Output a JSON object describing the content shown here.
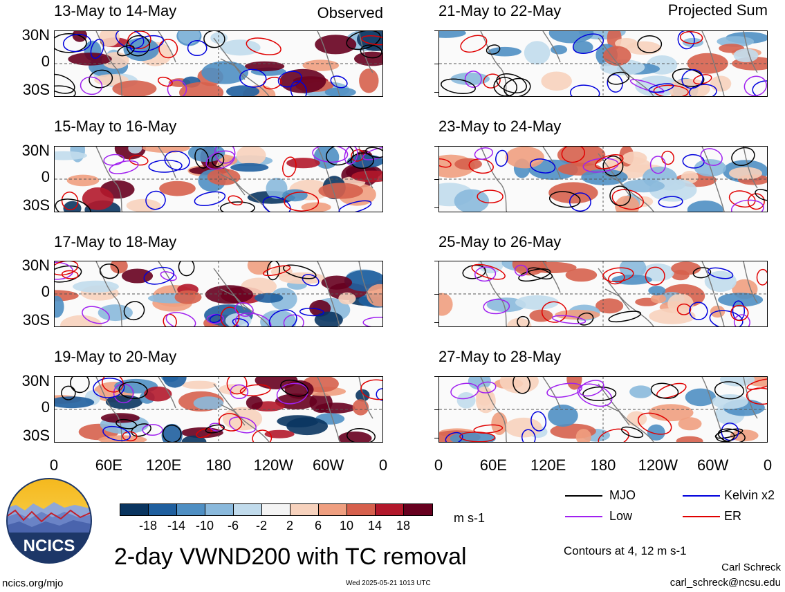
{
  "header": {
    "left_label": "Observed",
    "right_label": "Projected Sum"
  },
  "panels": [
    {
      "title": "13-May to 14-May"
    },
    {
      "title": "15-May to 16-May"
    },
    {
      "title": "17-May to 18-May"
    },
    {
      "title": "19-May to 20-May"
    },
    {
      "title": "21-May to 22-May"
    },
    {
      "title": "23-May to 24-May"
    },
    {
      "title": "25-May to 26-May"
    },
    {
      "title": "27-May to 28-May"
    }
  ],
  "axes": {
    "lat_ticks": [
      "30N",
      "0",
      "30S"
    ],
    "lon_ticks": [
      "0",
      "60E",
      "120E",
      "180",
      "120W",
      "60W",
      "0"
    ]
  },
  "colorbar": {
    "colors": [
      "#0a3560",
      "#1f5f9e",
      "#4f8fc3",
      "#8ab9dc",
      "#c1dbec",
      "#f4f4f4",
      "#f7d2bd",
      "#ef9f80",
      "#d6604d",
      "#b2182b",
      "#67001f"
    ],
    "ticks": [
      "-18",
      "-14",
      "-10",
      "-6",
      "-2",
      "2",
      "6",
      "10",
      "14",
      "18"
    ],
    "units": "m s-1"
  },
  "legend": {
    "items": [
      {
        "label": "MJO",
        "color": "#000000"
      },
      {
        "label": "Kelvin x2",
        "color": "#0000dd"
      },
      {
        "label": "Low",
        "color": "#a020f0"
      },
      {
        "label": "ER",
        "color": "#e00000"
      }
    ],
    "contours_note": "Contours at 4, 12 m s-1"
  },
  "footer": {
    "title": "2-day VWND200 with TC removal",
    "logo_text": "NCICS",
    "site": "ncics.org/mjo",
    "timestamp": "Wed 2025-05-21 1013 UTC",
    "author": "Carl Schreck",
    "email": "carl_schreck@ncsu.edu"
  },
  "chart_data": {
    "type": "heatmap",
    "variable": "2-day VWND200 with TC removal",
    "units": "m s-1",
    "contour_levels": [
      4,
      12
    ],
    "color_scale_levels": [
      -18,
      -14,
      -10,
      -6,
      -2,
      2,
      6,
      10,
      14,
      18
    ],
    "lat_ticks": [
      "30N",
      "0",
      "30S"
    ],
    "lon_ticks": [
      "0",
      "60E",
      "120E",
      "180",
      "120W",
      "60W",
      "0"
    ],
    "groups": [
      "Observed",
      "Projected Sum"
    ],
    "periods": {
      "Observed": [
        "13-May to 14-May",
        "15-May to 16-May",
        "17-May to 18-May",
        "19-May to 20-May"
      ],
      "Projected Sum": [
        "21-May to 22-May",
        "23-May to 24-May",
        "25-May to 26-May",
        "27-May to 28-May"
      ]
    },
    "contour_series": [
      "MJO",
      "Kelvin x2",
      "Low",
      "ER"
    ]
  }
}
